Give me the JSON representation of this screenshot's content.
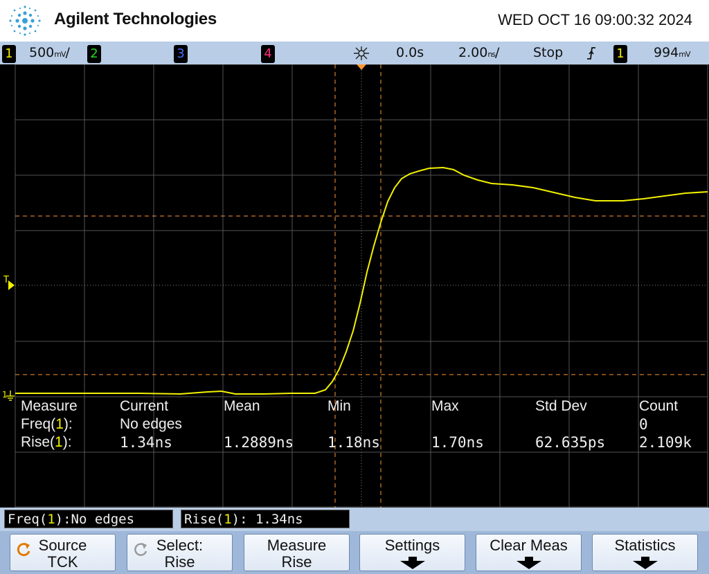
{
  "header": {
    "brand": "Agilent Technologies",
    "datetime": "WED OCT 16 09:00:32 2024"
  },
  "statusbar": {
    "ch1_label": "1",
    "ch1_scale": "500",
    "ch1_unit": "mV",
    "ch2_label": "2",
    "ch3_label": "3",
    "ch4_label": "4",
    "trigger_delay": "0.0s",
    "timebase": "2.00",
    "timebase_unit": "ns",
    "run_state": "Stop",
    "trigger_slope_icon": "rising-edge-icon",
    "trigger_source": "1",
    "trigger_level": "994",
    "trigger_level_unit": "mV"
  },
  "screen": {
    "trigger_marker_label": "T",
    "ground_marker_label": "1"
  },
  "measurements": {
    "headers": [
      "Measure",
      "Current",
      "Mean",
      "Min",
      "Max",
      "Std Dev",
      "Count"
    ],
    "rows": [
      {
        "name": "Freq",
        "channel": "1",
        "current": "No edges",
        "mean": "",
        "min": "",
        "max": "",
        "stddev": "",
        "count": "0"
      },
      {
        "name": "Rise",
        "channel": "1",
        "current": "1.34ns",
        "mean": "1.2889ns",
        "min": "1.18ns",
        "max": "1.70ns",
        "stddev": "62.635ps",
        "count": "2.109k"
      }
    ]
  },
  "infobar": {
    "freq_prefix": "Freq(",
    "freq_channel": "1",
    "freq_suffix": "):No edges",
    "rise_prefix": "Rise(",
    "rise_channel": "1",
    "rise_suffix": "): 1.34ns"
  },
  "softkeys": [
    {
      "line1": "Source",
      "line2": "TCK"
    },
    {
      "line1": "Select:",
      "line2": "Rise"
    },
    {
      "line1": "Measure",
      "line2": "Rise"
    },
    {
      "line1": "Settings",
      "line2": ""
    },
    {
      "line1": "Clear Meas",
      "line2": ""
    },
    {
      "line1": "Statistics",
      "line2": ""
    }
  ],
  "colors": {
    "ch1": "#f2f200",
    "ch2": "#22dd22",
    "ch3": "#4b6bff",
    "ch4": "#ff2f7f",
    "cursor": "#ff9933",
    "bar": "#b9cde6"
  }
}
